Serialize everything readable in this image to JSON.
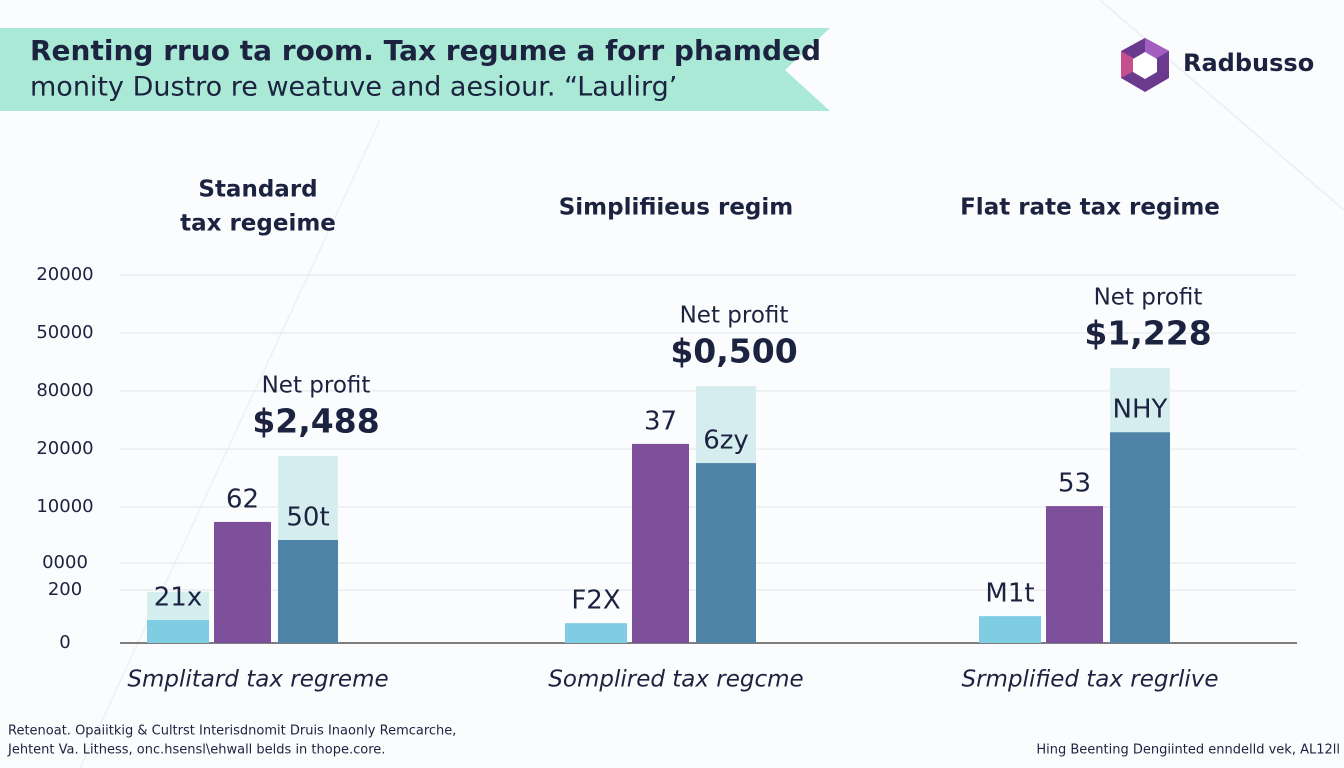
{
  "header": {
    "title": "Renting rruo ta room. Tax regume a forr phamded",
    "subtitle": "monity Dustro re weatuve and aesiour. “Laulirg’"
  },
  "logo": {
    "name": "Radbusso"
  },
  "chart_data": {
    "type": "bar",
    "categories": [
      "Smplitard tax regreme",
      "Somplired tax regcme",
      "Srmplified tax regrlive"
    ],
    "group_titles": [
      [
        "Standard",
        "tax regeime"
      ],
      [
        "Simplifiieus regim"
      ],
      [
        "Flat rate tax regime"
      ]
    ],
    "series": [
      {
        "color": "#7fcde3",
        "values": [
          6.3,
          5.4,
          7.3
        ]
      },
      {
        "color": "#d5eef0",
        "values": [
          7.6,
          0,
          0
        ]
      },
      {
        "color": "#7e4f9b",
        "values": [
          32.9,
          54.1,
          37.2
        ]
      },
      {
        "color": "#4f84a8",
        "values": [
          28,
          48.9,
          57.3
        ]
      },
      {
        "color": "#d5edee",
        "values": [
          22.8,
          20.9,
          17.4
        ]
      }
    ],
    "bar_labels": [
      [
        "21x",
        "62",
        "50t"
      ],
      [
        "F2X",
        "37",
        "6zy"
      ],
      [
        "M1t",
        "53",
        "NHY"
      ]
    ],
    "notes": [
      {
        "label": "Net profit",
        "value": "$2,488"
      },
      {
        "label": "Net profit",
        "value": "$0,500"
      },
      {
        "label": "Net profit",
        "value": "$1,228"
      }
    ],
    "ylim": [
      0,
      100
    ],
    "yticks": [
      0,
      {
        "value": 14.4,
        "label": "200"
      },
      {
        "value": 21.7,
        "label": "0000"
      },
      {
        "value": 37,
        "label": "10000"
      },
      {
        "value": 52.7,
        "label": "20000"
      },
      {
        "value": 68.5,
        "label": "80000"
      },
      {
        "value": 84.2,
        "label": "50000"
      },
      {
        "value": 100,
        "label": "20000"
      }
    ],
    "grid": true
  },
  "footer": {
    "left": [
      "Retenoat. Opaiitkig & Cultrst Interisdnomit Druis Inaonly Remcarche,",
      "Jehtent Va. Lithess, onc.hsensl\\ehwall belds in thope.core."
    ],
    "right": "Hing Beenting Dengiinted enndelld vek, AL12ll"
  }
}
